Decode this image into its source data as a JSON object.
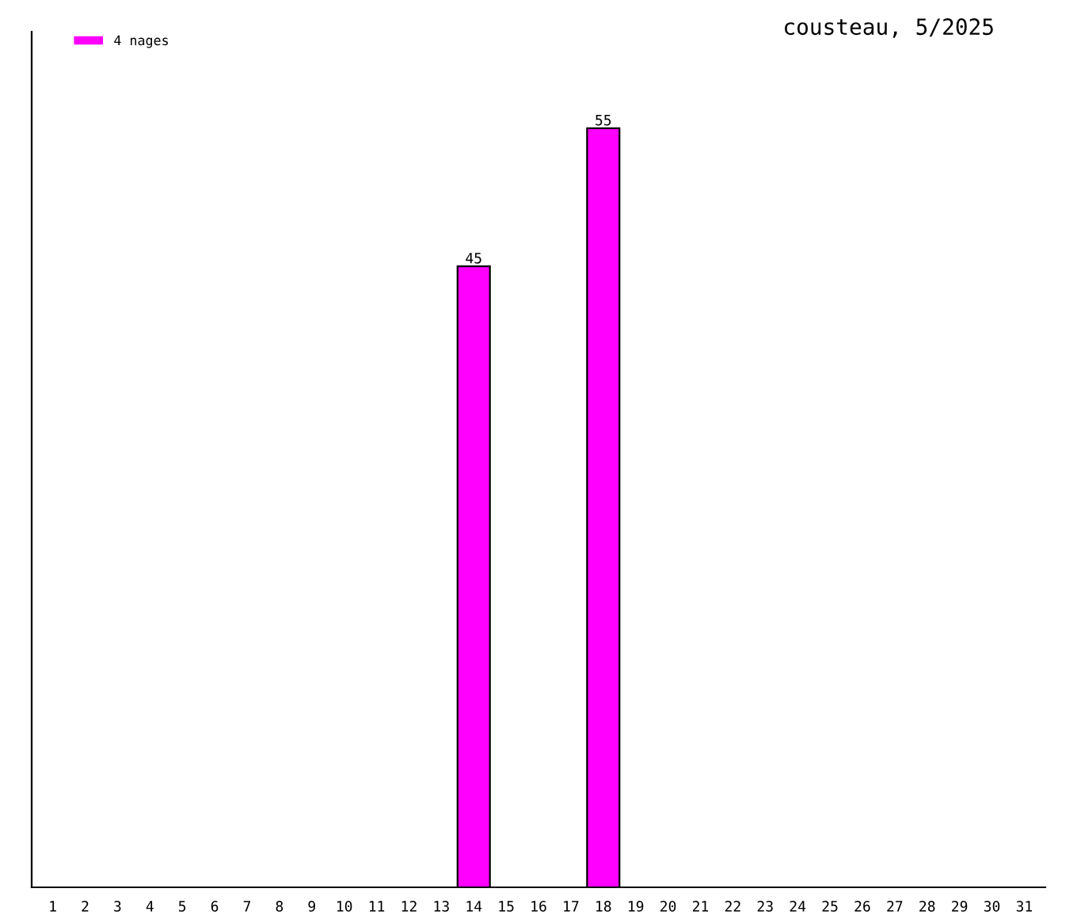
{
  "chart_data": {
    "type": "bar",
    "title": "cousteau, 5/2025",
    "categories": [
      "1",
      "2",
      "3",
      "4",
      "5",
      "6",
      "7",
      "8",
      "9",
      "10",
      "11",
      "12",
      "13",
      "14",
      "15",
      "16",
      "17",
      "18",
      "19",
      "20",
      "21",
      "22",
      "23",
      "24",
      "25",
      "26",
      "27",
      "28",
      "29",
      "30",
      "31"
    ],
    "series": [
      {
        "name": "4 nages",
        "color": "#ff00ff",
        "values": [
          null,
          null,
          null,
          null,
          null,
          null,
          null,
          null,
          null,
          null,
          null,
          null,
          null,
          45,
          null,
          null,
          null,
          55,
          null,
          null,
          null,
          null,
          null,
          null,
          null,
          null,
          null,
          null,
          null,
          null,
          null
        ],
        "value_labels": [
          null,
          null,
          null,
          null,
          null,
          null,
          null,
          null,
          null,
          null,
          null,
          null,
          null,
          "45",
          null,
          null,
          null,
          "55",
          null,
          null,
          null,
          null,
          null,
          null,
          null,
          null,
          null,
          null,
          null,
          null,
          null
        ]
      }
    ],
    "ylim": [
      0,
      62
    ],
    "tick_labels": "x",
    "grid": false,
    "legend": "top left"
  }
}
